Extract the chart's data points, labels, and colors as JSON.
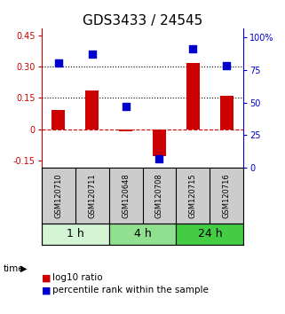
{
  "title": "GDS3433 / 24545",
  "samples": [
    "GSM120710",
    "GSM120711",
    "GSM120648",
    "GSM120708",
    "GSM120715",
    "GSM120716"
  ],
  "log10_ratio": [
    0.09,
    0.185,
    -0.01,
    -0.13,
    0.32,
    0.16
  ],
  "percentile_rank": [
    80,
    87,
    47,
    7,
    91,
    78
  ],
  "groups": [
    {
      "label": "1 h",
      "indices": [
        0,
        1
      ],
      "color": "#d4f5d4"
    },
    {
      "label": "4 h",
      "indices": [
        2,
        3
      ],
      "color": "#90e090"
    },
    {
      "label": "24 h",
      "indices": [
        4,
        5
      ],
      "color": "#44cc44"
    }
  ],
  "ylim_left": [
    -0.185,
    0.485
  ],
  "ylim_right": [
    0,
    107
  ],
  "yticks_left": [
    -0.15,
    0,
    0.15,
    0.3,
    0.45
  ],
  "yticks_left_labels": [
    "-0.15",
    "0",
    "0.15",
    "0.30",
    "0.45"
  ],
  "yticks_right": [
    0,
    25,
    50,
    75,
    100
  ],
  "yticks_right_labels": [
    "0",
    "25",
    "50",
    "75",
    "100%"
  ],
  "hlines": [
    0.15,
    0.3
  ],
  "bar_color": "#cc0000",
  "dot_color": "#0000cc",
  "bar_width": 0.4,
  "dot_size": 40,
  "zero_line_color": "#cc0000",
  "hline_color": "#000000",
  "sample_box_color": "#cccccc",
  "title_fontsize": 11,
  "tick_fontsize": 7,
  "legend_fontsize": 7.5,
  "group_fontsize": 9
}
